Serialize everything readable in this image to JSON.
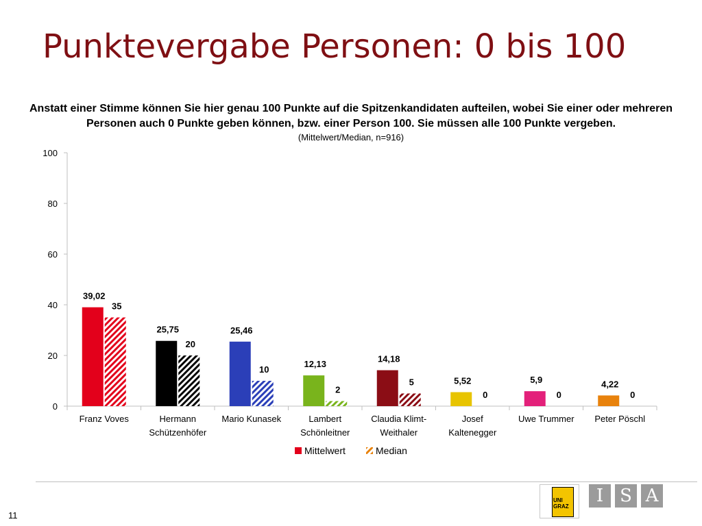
{
  "slide": {
    "title": "Punktevergabe Personen: 0 bis 100",
    "question": "Anstatt einer Stimme können Sie hier genau 100 Punkte auf die Spitzenkandidaten aufteilen, wobei Sie einer oder mehreren Personen auch 0 Punkte geben können, bzw. einer Person 100. Sie müssen alle 100 Punkte vergeben.",
    "note": "(Mittelwert/Median, n=916)",
    "page_number": "11"
  },
  "logos": {
    "uni_text": "UNI GRAZ",
    "isa_letters": [
      "I",
      "S",
      "A"
    ]
  },
  "chart_data": {
    "type": "bar",
    "categories": [
      [
        "Franz Voves"
      ],
      [
        "Hermann",
        "Schützenhöfer"
      ],
      [
        "Mario Kunasek"
      ],
      [
        "Lambert",
        "Schönleitner"
      ],
      [
        "Claudia Klimt-",
        "Weithaler"
      ],
      [
        "Josef",
        "Kaltenegger"
      ],
      [
        "Uwe Trummer"
      ],
      [
        "Peter Pöschl"
      ]
    ],
    "colors": [
      "#e3001b",
      "#000000",
      "#2b3fb8",
      "#79b41c",
      "#8b0d15",
      "#e8c400",
      "#e3207a",
      "#e8820c"
    ],
    "series": [
      {
        "name": "Mittelwert",
        "pattern": "solid",
        "values": [
          39.02,
          25.75,
          25.46,
          12.13,
          14.18,
          5.52,
          5.9,
          4.22
        ],
        "labels": [
          "39,02",
          "25,75",
          "25,46",
          "12,13",
          "14,18",
          "5,52",
          "5,9",
          "4,22"
        ]
      },
      {
        "name": "Median",
        "pattern": "hatched",
        "values": [
          35,
          20,
          10,
          2,
          5,
          0,
          0,
          0
        ],
        "labels": [
          "35",
          "20",
          "10",
          "2",
          "5",
          "0",
          "0",
          "0"
        ]
      }
    ],
    "ylim": [
      0,
      100
    ],
    "yticks": [
      0,
      20,
      40,
      60,
      80,
      100
    ],
    "legend": {
      "placement": "bottom",
      "color": "#e3001b"
    },
    "grid": false
  }
}
